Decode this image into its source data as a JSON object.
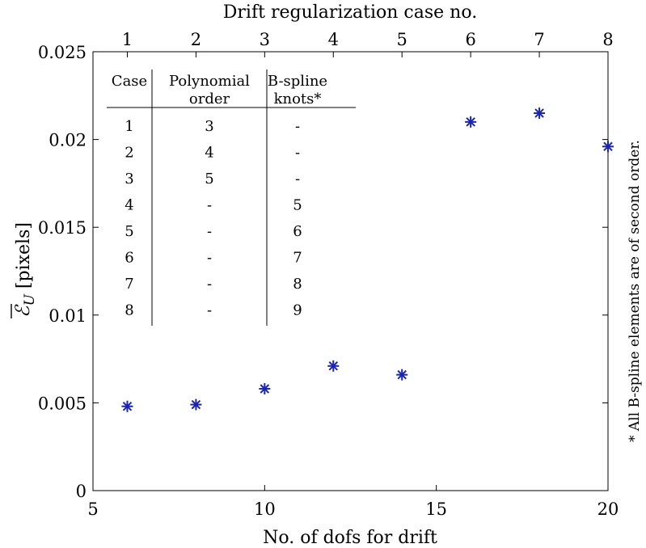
{
  "chart_data": {
    "type": "scatter",
    "xlabel": "No. of dofs for drift",
    "ylabel_symbol": "ℰ",
    "ylabel_subscript": "U",
    "ylabel_unit": "[pixels]",
    "top_xlabel": "Drift regularization case no.",
    "xlim": [
      5,
      20
    ],
    "ylim": [
      0,
      0.025
    ],
    "x_ticks": [
      "5",
      "10",
      "15",
      "20"
    ],
    "y_ticks": [
      "0",
      "0.005",
      "0.01",
      "0.015",
      "0.02",
      "0.025"
    ],
    "top_ticks": [
      "1",
      "2",
      "3",
      "4",
      "5",
      "6",
      "7",
      "8"
    ],
    "grid": false,
    "marker": "asterisk",
    "marker_color": "#1a24b8",
    "points": [
      {
        "x": 6,
        "y": 0.0048
      },
      {
        "x": 8,
        "y": 0.0049
      },
      {
        "x": 10,
        "y": 0.0058
      },
      {
        "x": 12,
        "y": 0.0071
      },
      {
        "x": 14,
        "y": 0.0066
      },
      {
        "x": 16,
        "y": 0.021
      },
      {
        "x": 18,
        "y": 0.0215
      },
      {
        "x": 20,
        "y": 0.0196
      }
    ],
    "inset_table": {
      "headers": [
        [
          "Case"
        ],
        [
          "Polynomial",
          "order"
        ],
        [
          "B-spline",
          "knots*"
        ]
      ],
      "rows": [
        [
          "1",
          "3",
          "-"
        ],
        [
          "2",
          "4",
          "-"
        ],
        [
          "3",
          "5",
          "-"
        ],
        [
          "4",
          "-",
          "5"
        ],
        [
          "5",
          "-",
          "6"
        ],
        [
          "6",
          "-",
          "7"
        ],
        [
          "7",
          "-",
          "8"
        ],
        [
          "8",
          "-",
          "9"
        ]
      ]
    },
    "side_note": "* All B-spline elements are of second order."
  }
}
